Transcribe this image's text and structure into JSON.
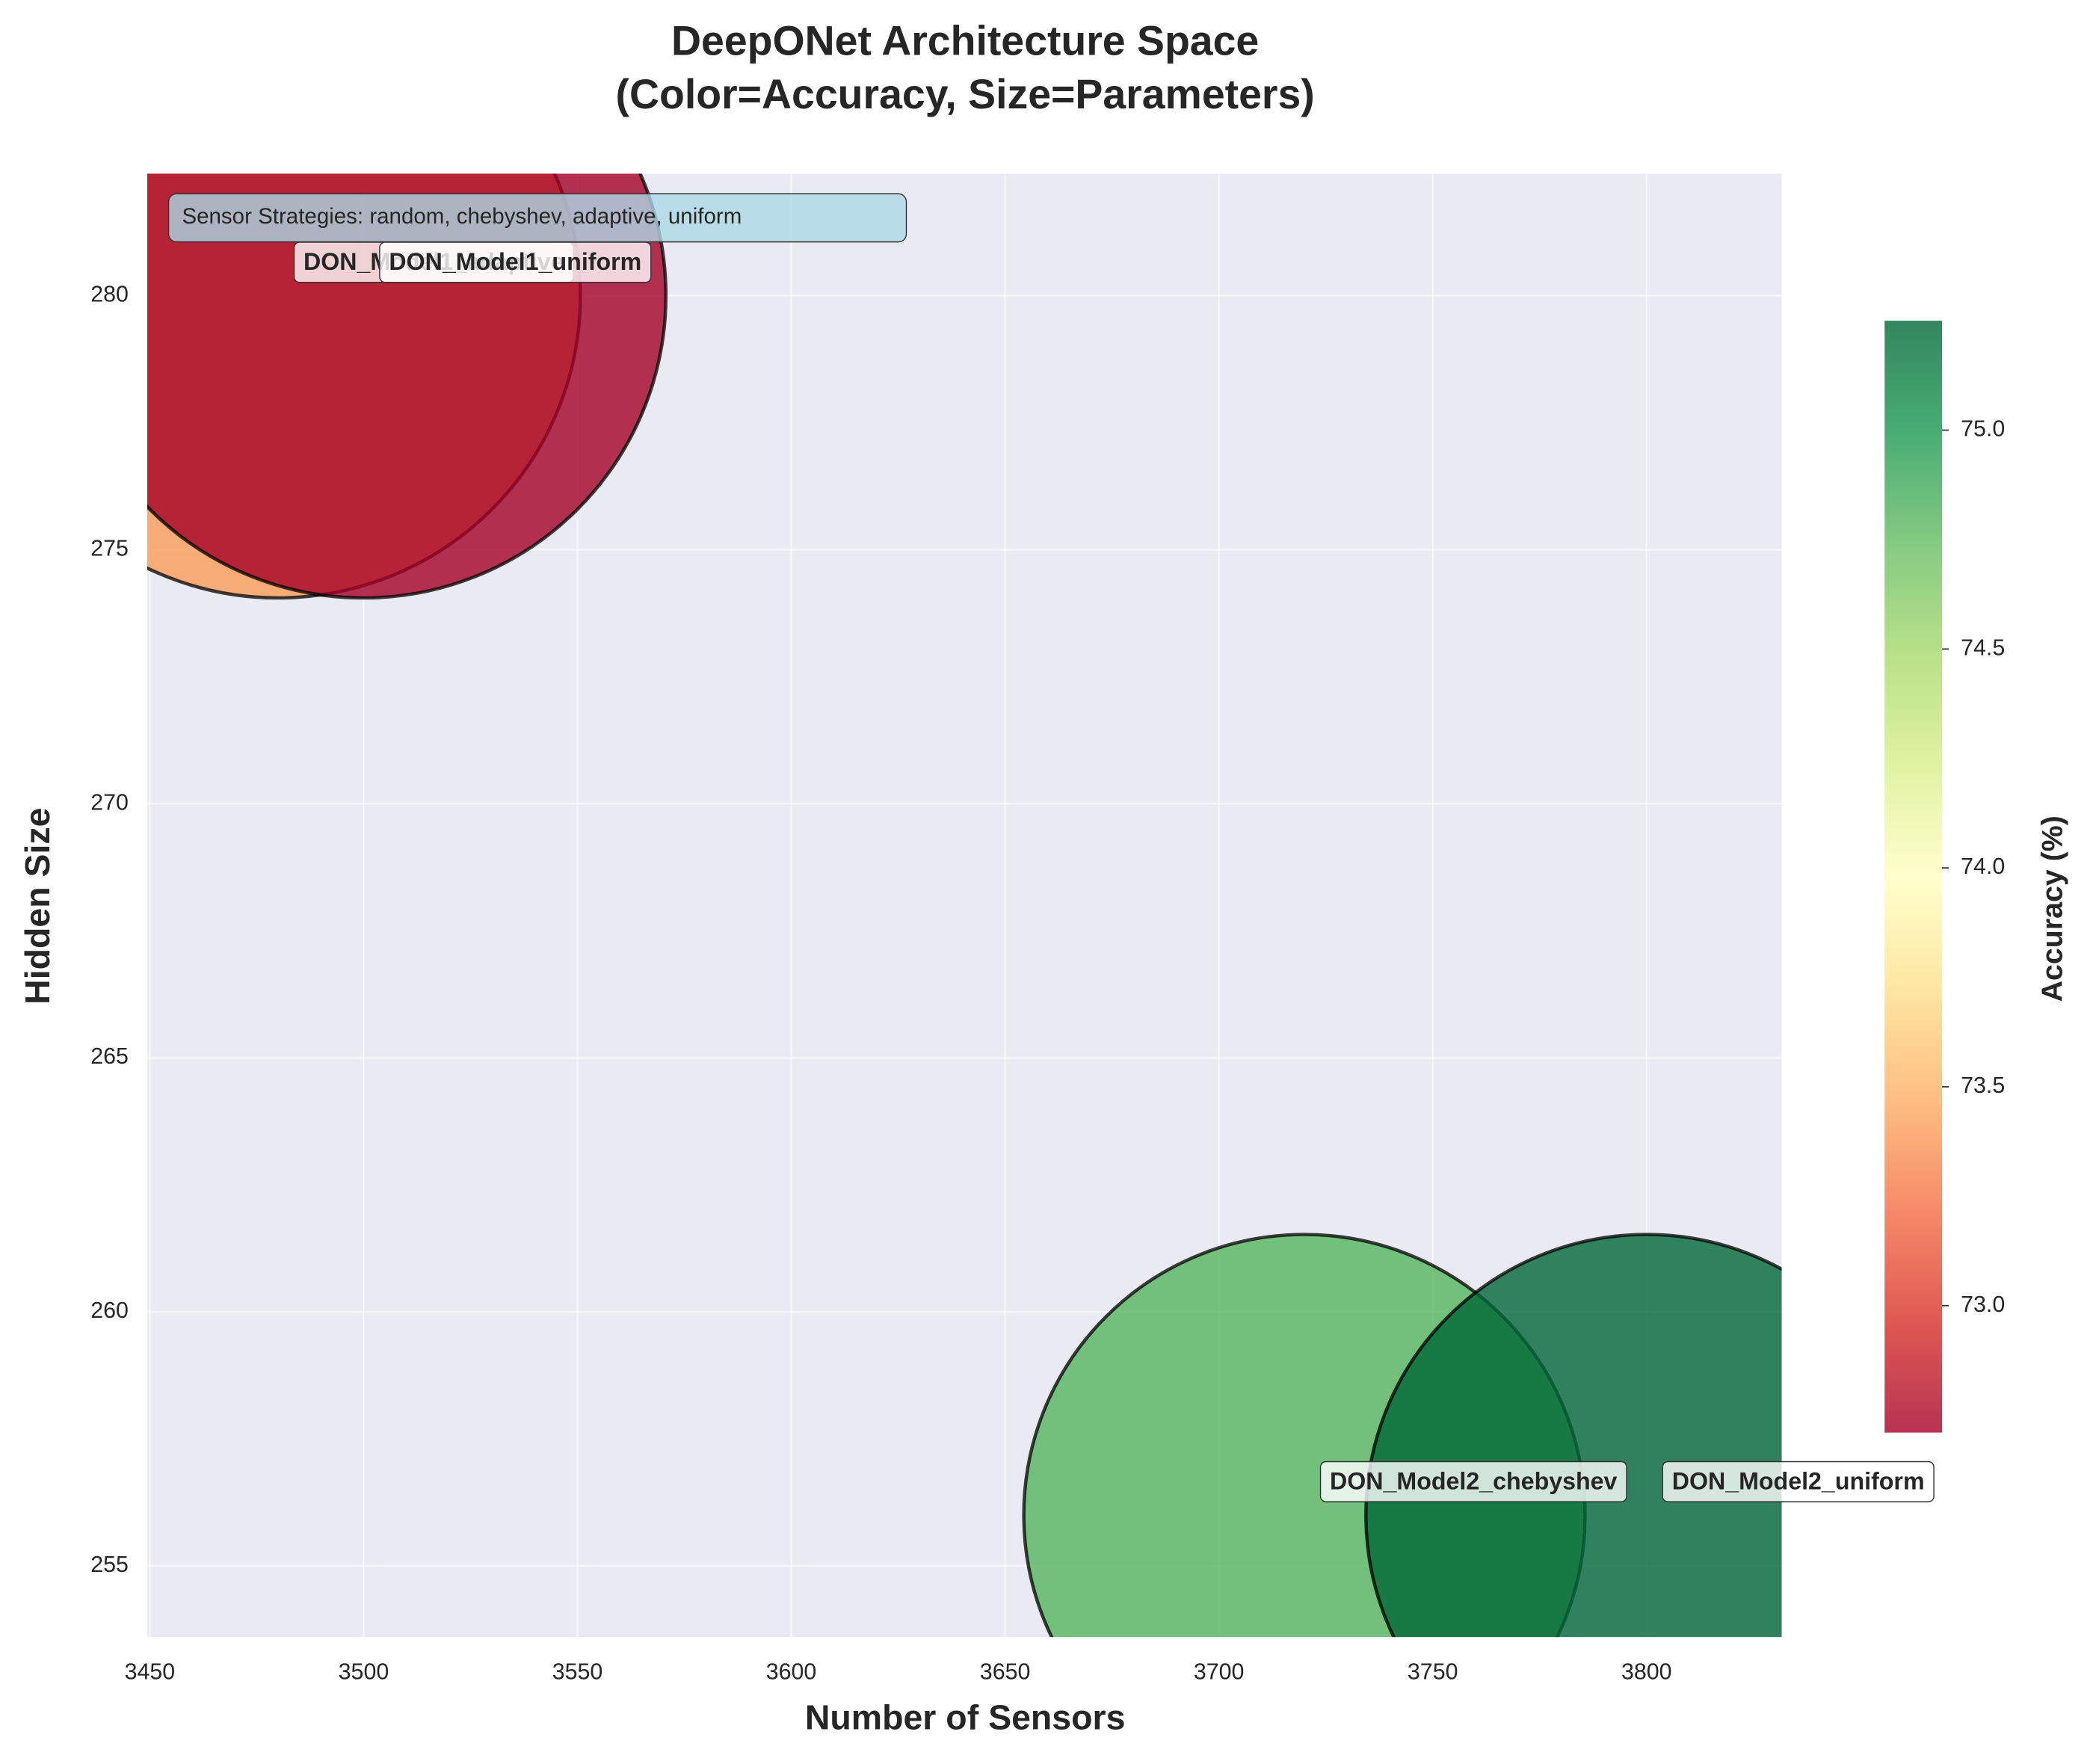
{
  "chart_data": {
    "type": "scatter",
    "title": "DeepONet Architecture Space",
    "subtitle": "(Color=Accuracy, Size=Parameters)",
    "x_label": "Number of Sensors",
    "y_label": "Hidden Size",
    "colorbar_label": "Accuracy (%)",
    "annotation": "Sensor Strategies: random, chebyshev, adaptive, uniform",
    "labels": [
      "DON_Model1_adaptive",
      "DON_Model1_uniform",
      "DON_Model2_chebyshev",
      "DON_Model2_uniform"
    ],
    "x": [
      3480,
      3500,
      3720,
      3800
    ],
    "y": [
      280,
      280,
      256,
      256
    ],
    "sizes": [
      290000,
      290000,
      250000,
      250000
    ],
    "accuracy": [
      73.4,
      72.71,
      74.8,
      75.25
    ],
    "colormap": [
      "#a50026",
      "#d73027",
      "#f46d43",
      "#fdae61",
      "#fee08b",
      "#ffffbf",
      "#d9ef8b",
      "#a6d96a",
      "#66bd63",
      "#1a9850",
      "#006837"
    ],
    "clim": [
      72.71,
      75.25
    ],
    "cticks": [
      {
        "value": 73,
        "label": "73.0"
      },
      {
        "value": 73.5,
        "label": "73.5"
      },
      {
        "value": 74,
        "label": "74.0"
      },
      {
        "value": 74.5,
        "label": "74.5"
      },
      {
        "value": 75,
        "label": "75.0"
      }
    ],
    "xlim": [
      3449.4,
      3831.6
    ],
    "xticks": [
      3450,
      3500,
      3550,
      3600,
      3650,
      3700,
      3750,
      3800
    ],
    "ylim": [
      253.6,
      282.4
    ],
    "yticks": [
      255,
      260,
      265,
      270,
      275,
      280
    ],
    "grid": true
  }
}
